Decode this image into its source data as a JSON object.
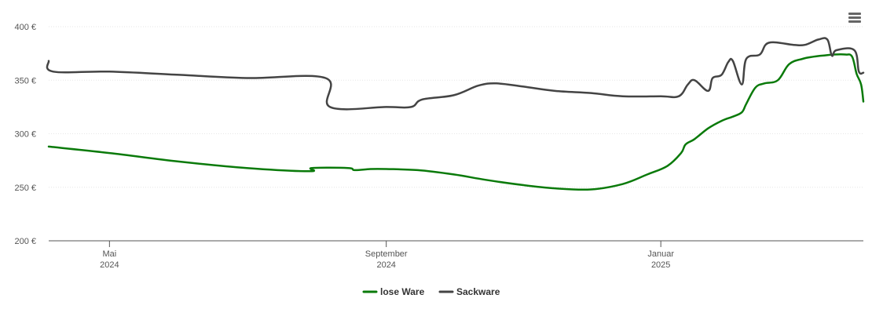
{
  "menu": {
    "icon": "hamburger-menu-icon"
  },
  "chart_data": {
    "type": "line",
    "title": "",
    "xlabel": "",
    "ylabel": "",
    "x_range": [
      "2024-04-04",
      "2025-04-01"
    ],
    "ylim": [
      200,
      400
    ],
    "y_ticks": [
      200,
      250,
      300,
      350,
      400
    ],
    "y_tick_labels": [
      "200 €",
      "250 €",
      "300 €",
      "350 €",
      "400 €"
    ],
    "x_ticks": [
      {
        "date": "2024-05-01",
        "line1": "Mai",
        "line2": "2024"
      },
      {
        "date": "2024-09-01",
        "line1": "September",
        "line2": "2024"
      },
      {
        "date": "2025-01-01",
        "line1": "Januar",
        "line2": "2025"
      }
    ],
    "grid": true,
    "legend_position": "bottom",
    "series": [
      {
        "name": "lose Ware",
        "color": "#0a7a0a",
        "points": [
          [
            "2024-04-04",
            288
          ],
          [
            "2024-05-01",
            282
          ],
          [
            "2024-06-01",
            274
          ],
          [
            "2024-07-01",
            268
          ],
          [
            "2024-07-29",
            265
          ],
          [
            "2024-07-30",
            268
          ],
          [
            "2024-08-15",
            268
          ],
          [
            "2024-08-18",
            266
          ],
          [
            "2024-08-25",
            267
          ],
          [
            "2024-09-01",
            267
          ],
          [
            "2024-09-15",
            266
          ],
          [
            "2024-10-01",
            262
          ],
          [
            "2024-10-15",
            257
          ],
          [
            "2024-11-01",
            252
          ],
          [
            "2024-11-15",
            249
          ],
          [
            "2024-12-01",
            248
          ],
          [
            "2024-12-15",
            253
          ],
          [
            "2024-12-26",
            262
          ],
          [
            "2025-01-04",
            270
          ],
          [
            "2025-01-10",
            282
          ],
          [
            "2025-01-12",
            290
          ],
          [
            "2025-01-16",
            295
          ],
          [
            "2025-01-22",
            305
          ],
          [
            "2025-01-28",
            312
          ],
          [
            "2025-02-02",
            316
          ],
          [
            "2025-02-06",
            320
          ],
          [
            "2025-02-08",
            328
          ],
          [
            "2025-02-12",
            343
          ],
          [
            "2025-02-16",
            347
          ],
          [
            "2025-02-22",
            350
          ],
          [
            "2025-02-27",
            365
          ],
          [
            "2025-03-05",
            370
          ],
          [
            "2025-03-10",
            372
          ],
          [
            "2025-03-14",
            373
          ],
          [
            "2025-03-19",
            374
          ],
          [
            "2025-03-24",
            374
          ],
          [
            "2025-03-27",
            372
          ],
          [
            "2025-03-29",
            356
          ],
          [
            "2025-03-31",
            346
          ],
          [
            "2025-04-01",
            330
          ]
        ]
      },
      {
        "name": "Sackware",
        "color": "#444444",
        "points": [
          [
            "2024-04-04",
            368
          ],
          [
            "2024-04-06",
            358
          ],
          [
            "2024-05-01",
            358
          ],
          [
            "2024-06-01",
            355
          ],
          [
            "2024-07-01",
            352
          ],
          [
            "2024-08-05",
            352
          ],
          [
            "2024-08-07",
            325
          ],
          [
            "2024-09-01",
            325
          ],
          [
            "2024-09-12",
            325
          ],
          [
            "2024-09-17",
            332
          ],
          [
            "2024-10-01",
            336
          ],
          [
            "2024-10-12",
            345
          ],
          [
            "2024-10-20",
            347
          ],
          [
            "2024-11-01",
            344
          ],
          [
            "2024-11-15",
            340
          ],
          [
            "2024-12-01",
            338
          ],
          [
            "2024-12-15",
            335
          ],
          [
            "2025-01-01",
            335
          ],
          [
            "2025-01-09",
            335
          ],
          [
            "2025-01-13",
            346
          ],
          [
            "2025-01-16",
            350
          ],
          [
            "2025-01-22",
            340
          ],
          [
            "2025-01-24",
            352
          ],
          [
            "2025-01-28",
            355
          ],
          [
            "2025-01-31",
            367
          ],
          [
            "2025-02-02",
            368
          ],
          [
            "2025-02-06",
            346
          ],
          [
            "2025-02-08",
            370
          ],
          [
            "2025-02-14",
            374
          ],
          [
            "2025-02-18",
            385
          ],
          [
            "2025-03-01",
            383
          ],
          [
            "2025-03-06",
            383
          ],
          [
            "2025-03-12",
            388
          ],
          [
            "2025-03-16",
            388
          ],
          [
            "2025-03-18",
            373
          ],
          [
            "2025-03-20",
            378
          ],
          [
            "2025-03-28",
            378
          ],
          [
            "2025-03-30",
            358
          ],
          [
            "2025-04-01",
            357
          ]
        ]
      }
    ]
  }
}
